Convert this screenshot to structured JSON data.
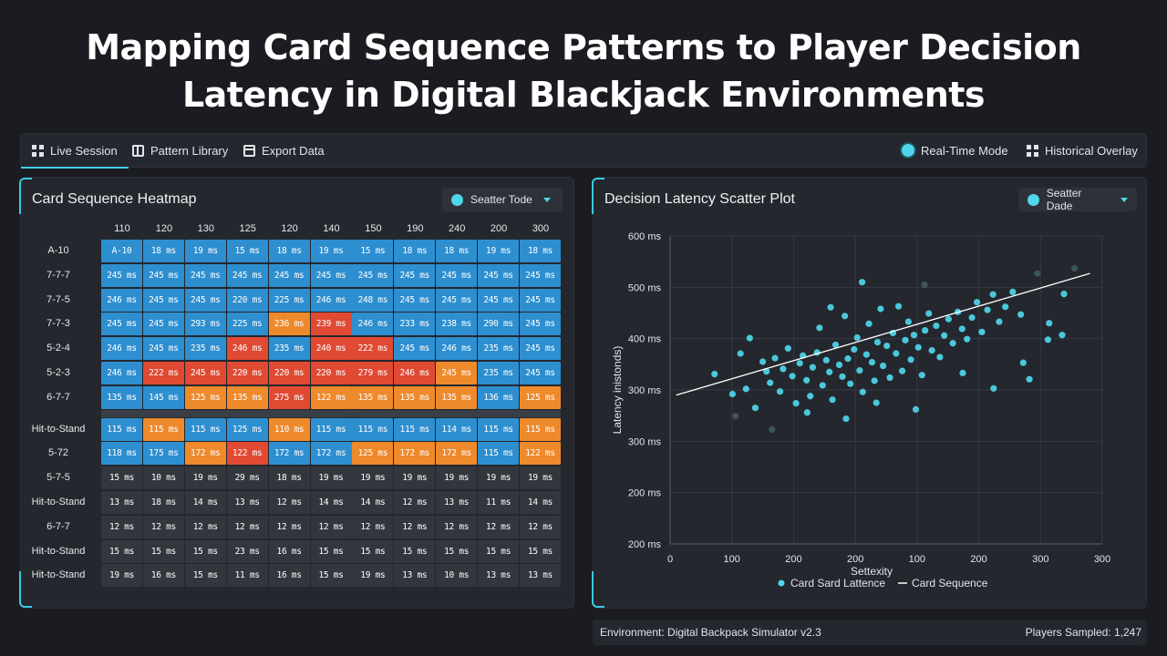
{
  "title_line1": "Mapping Card Sequence Patterns to Player Decision",
  "title_line2": "Latency in Digital Blackjack Environments",
  "toolbar": {
    "live_session": "Live Session",
    "pattern_library": "Pattern Library",
    "export_data": "Export Data",
    "realtime_mode": "Real-Time Mode",
    "historical_overlay": "Historical Overlay"
  },
  "heatmap": {
    "title": "Card Sequence Heatmap",
    "dropdown": "Seatter Tode",
    "columns": [
      "110",
      "120",
      "130",
      "125",
      "120",
      "140",
      "150",
      "190",
      "240",
      "200",
      "300"
    ],
    "rows": [
      {
        "label": "A-10",
        "cells": [
          "A-10",
          "18 ms",
          "19 ms",
          "15 ms",
          "18 ms",
          "19 ms",
          "15 ms",
          "18 ms",
          "18 ms",
          "19 ms",
          "18 ms"
        ],
        "colors": [
          "b",
          "b",
          "b",
          "b",
          "b",
          "b",
          "b",
          "b",
          "b",
          "b",
          "b"
        ]
      },
      {
        "label": "7-7-7",
        "cells": [
          "245 ms",
          "245 ms",
          "245 ms",
          "245 ms",
          "245 ms",
          "245 ms",
          "245 ms",
          "245 ms",
          "245 ms",
          "245 ms",
          "245 ms"
        ],
        "colors": [
          "b",
          "b",
          "b",
          "b",
          "b",
          "b",
          "b",
          "b",
          "b",
          "b",
          "b"
        ]
      },
      {
        "label": "7-7-5",
        "cells": [
          "246 ms",
          "245 ms",
          "245 ms",
          "220 ms",
          "225 ms",
          "246 ms",
          "248 ms",
          "245 ms",
          "245 ms",
          "245 ms",
          "245 ms"
        ],
        "colors": [
          "b",
          "b",
          "b",
          "b",
          "b",
          "b",
          "b",
          "b",
          "b",
          "b",
          "b"
        ]
      },
      {
        "label": "7-7-3",
        "cells": [
          "245 ms",
          "245 ms",
          "293 ms",
          "225 ms",
          "236 ms",
          "239 ms",
          "246 ms",
          "233 ms",
          "238 ms",
          "290 ms",
          "245 ms"
        ],
        "colors": [
          "b",
          "b",
          "b",
          "b",
          "o",
          "r",
          "b",
          "b",
          "b",
          "b",
          "b"
        ]
      },
      {
        "label": "5-2-4",
        "cells": [
          "246 ms",
          "245 ms",
          "235 ms",
          "246 ms",
          "235 ms",
          "240 ms",
          "222 ms",
          "245 ms",
          "246 ms",
          "235 ms",
          "245 ms"
        ],
        "colors": [
          "b",
          "b",
          "b",
          "r",
          "b",
          "r",
          "r",
          "b",
          "b",
          "b",
          "b"
        ]
      },
      {
        "label": "5-2-3",
        "cells": [
          "246 ms",
          "222 ms",
          "245 ms",
          "220 ms",
          "220 ms",
          "220 ms",
          "279 ms",
          "246 ms",
          "245 ms",
          "235 ms",
          "245 ms"
        ],
        "colors": [
          "b",
          "r",
          "r",
          "r",
          "r",
          "r",
          "r",
          "r",
          "o",
          "b",
          "b"
        ]
      },
      {
        "label": "6-7-7",
        "cells": [
          "135 ms",
          "145 ms",
          "125 ms",
          "135 ms",
          "275 ms",
          "122 ms",
          "135 ms",
          "135 ms",
          "135 ms",
          "136 ms",
          "125 ms"
        ],
        "colors": [
          "b",
          "b",
          "o",
          "o",
          "r",
          "o",
          "o",
          "o",
          "o",
          "b",
          "o"
        ]
      },
      {
        "label": "Hit-to-Stand",
        "cells": [
          "115 ms",
          "115 ms",
          "115 ms",
          "125 ms",
          "110 ms",
          "115 ms",
          "115 ms",
          "115 ms",
          "114 ms",
          "115 ms",
          "115 ms"
        ],
        "colors": [
          "b",
          "o",
          "b",
          "b",
          "o",
          "b",
          "b",
          "b",
          "b",
          "b",
          "o"
        ]
      },
      {
        "label": "5-72",
        "cells": [
          "118 ms",
          "175 ms",
          "172 ms",
          "122 ms",
          "172 ms",
          "172 ms",
          "125 ms",
          "172 ms",
          "172 ms",
          "115 ms",
          "122 ms"
        ],
        "colors": [
          "b",
          "b",
          "o",
          "r",
          "b",
          "b",
          "o",
          "o",
          "o",
          "b",
          "o"
        ]
      },
      {
        "label": "5-7-5",
        "cells": [
          "15 ms",
          "10 ms",
          "19 ms",
          "29 ms",
          "18 ms",
          "19 ms",
          "19 ms",
          "19 ms",
          "19 ms",
          "19 ms",
          "19 ms"
        ],
        "colors": [
          "d",
          "d",
          "d",
          "d",
          "d",
          "d",
          "d",
          "d",
          "d",
          "d",
          "d"
        ]
      },
      {
        "label": "Hit-to-Stand",
        "cells": [
          "13 ms",
          "18 ms",
          "14 ms",
          "13 ms",
          "12 ms",
          "14 ms",
          "14 ms",
          "12 ms",
          "13 ms",
          "11 ms",
          "14 ms"
        ],
        "colors": [
          "d",
          "d",
          "d",
          "d",
          "d",
          "d",
          "d",
          "d",
          "d",
          "d",
          "d"
        ]
      },
      {
        "label": "6-7-7",
        "cells": [
          "12 ms",
          "12 ms",
          "12 ms",
          "12 ms",
          "12 ms",
          "12 ms",
          "12 ms",
          "12 ms",
          "12 ms",
          "12 ms",
          "12 ms"
        ],
        "colors": [
          "d",
          "d",
          "d",
          "d",
          "d",
          "d",
          "d",
          "d",
          "d",
          "d",
          "d"
        ]
      },
      {
        "label": "Hit-to-Stand",
        "cells": [
          "15 ms",
          "15 ms",
          "15 ms",
          "23 ms",
          "16 ms",
          "15 ms",
          "15 ms",
          "15 ms",
          "15 ms",
          "15 ms",
          "15 ms"
        ],
        "colors": [
          "d",
          "d",
          "d",
          "d",
          "d",
          "d",
          "d",
          "d",
          "d",
          "d",
          "d"
        ]
      },
      {
        "label": "Hit-to-Stand",
        "cells": [
          "19 ms",
          "16 ms",
          "15 ms",
          "11 ms",
          "16 ms",
          "15 ms",
          "19 ms",
          "13 ms",
          "10 ms",
          "13 ms",
          "13 ms"
        ],
        "colors": [
          "d",
          "d",
          "d",
          "d",
          "d",
          "d",
          "d",
          "d",
          "d",
          "d",
          "d"
        ]
      }
    ],
    "palette": {
      "b": "#2e8fd0",
      "o": "#ef8a2c",
      "r": "#e04a33",
      "d": "#33363d"
    }
  },
  "scatter": {
    "title": "Decision Latency Scatter Plot",
    "dropdown": "Seatter Dade"
  },
  "chart_data": {
    "type": "scatter",
    "title": "Decision Latency Scatter Plot",
    "xlabel": "Settexity",
    "ylabel": "Latency inistonds)",
    "x_tick_labels": [
      "0",
      "100",
      "200",
      "200",
      "100",
      "200",
      "300",
      "300"
    ],
    "y_tick_labels": [
      "600 ms",
      "500 ms",
      "400 ms",
      "300 ms",
      "300 ms",
      "200 ms",
      "200 ms"
    ],
    "xlim": [
      0,
      7
    ],
    "ylim": [
      0,
      6
    ],
    "grid": true,
    "legend": "bottom",
    "series": [
      {
        "name": "Card Sard Lattence",
        "kind": "points",
        "color": "#4fd6ea",
        "points": [
          [
            0.72,
            3.31
          ],
          [
            1.01,
            2.92
          ],
          [
            1.14,
            3.71
          ],
          [
            1.23,
            3.02
          ],
          [
            1.38,
            2.65
          ],
          [
            1.5,
            3.55
          ],
          [
            1.56,
            3.36
          ],
          [
            1.62,
            3.14
          ],
          [
            1.7,
            3.62
          ],
          [
            1.78,
            2.97
          ],
          [
            1.83,
            3.41
          ],
          [
            1.91,
            3.81
          ],
          [
            1.98,
            3.27
          ],
          [
            2.04,
            2.74
          ],
          [
            2.1,
            3.52
          ],
          [
            2.15,
            3.67
          ],
          [
            2.21,
            3.19
          ],
          [
            2.27,
            2.88
          ],
          [
            2.31,
            3.44
          ],
          [
            2.38,
            3.73
          ],
          [
            2.42,
            4.21
          ],
          [
            2.47,
            3.09
          ],
          [
            2.53,
            3.58
          ],
          [
            2.58,
            3.35
          ],
          [
            2.63,
            2.81
          ],
          [
            2.68,
            3.88
          ],
          [
            2.74,
            3.49
          ],
          [
            2.79,
            3.26
          ],
          [
            2.83,
            4.44
          ],
          [
            2.88,
            3.61
          ],
          [
            2.92,
            3.12
          ],
          [
            2.98,
            3.79
          ],
          [
            3.03,
            4.02
          ],
          [
            3.07,
            3.38
          ],
          [
            3.12,
            2.96
          ],
          [
            3.18,
            3.69
          ],
          [
            3.22,
            4.29
          ],
          [
            3.27,
            3.54
          ],
          [
            3.31,
            3.18
          ],
          [
            3.36,
            3.93
          ],
          [
            3.41,
            4.58
          ],
          [
            3.45,
            3.47
          ],
          [
            3.51,
            3.86
          ],
          [
            3.56,
            3.24
          ],
          [
            3.61,
            4.11
          ],
          [
            3.66,
            3.71
          ],
          [
            3.7,
            4.63
          ],
          [
            3.76,
            3.37
          ],
          [
            3.81,
            3.97
          ],
          [
            3.86,
            4.33
          ],
          [
            3.9,
            3.59
          ],
          [
            3.95,
            4.07
          ],
          [
            4.02,
            3.83
          ],
          [
            4.08,
            3.29
          ],
          [
            4.13,
            4.16
          ],
          [
            4.19,
            4.49
          ],
          [
            4.24,
            3.77
          ],
          [
            4.31,
            4.25
          ],
          [
            4.37,
            3.64
          ],
          [
            4.44,
            4.06
          ],
          [
            4.51,
            4.38
          ],
          [
            4.58,
            3.91
          ],
          [
            4.66,
            4.52
          ],
          [
            4.73,
            4.19
          ],
          [
            4.81,
            3.99
          ],
          [
            4.89,
            4.41
          ],
          [
            4.97,
            4.71
          ],
          [
            5.05,
            4.13
          ],
          [
            5.14,
            4.56
          ],
          [
            5.23,
            4.86
          ],
          [
            5.33,
            4.33
          ],
          [
            5.43,
            4.62
          ],
          [
            5.55,
            4.91
          ],
          [
            5.68,
            4.47
          ],
          [
            5.82,
            3.21
          ],
          [
            5.95,
            5.27
          ],
          [
            6.12,
            3.98
          ],
          [
            6.38,
            4.87
          ],
          [
            1.29,
            4.01
          ],
          [
            1.65,
            2.23
          ],
          [
            2.22,
            2.56
          ],
          [
            2.85,
            2.44
          ],
          [
            3.34,
            2.75
          ],
          [
            3.98,
            2.62
          ],
          [
            4.74,
            3.33
          ],
          [
            5.24,
            3.03
          ],
          [
            5.72,
            3.53
          ],
          [
            6.14,
            4.3
          ],
          [
            6.55,
            5.37
          ],
          [
            6.35,
            4.07
          ],
          [
            3.11,
            5.1
          ],
          [
            1.06,
            2.49
          ],
          [
            4.12,
            5.05
          ],
          [
            2.6,
            4.61
          ]
        ]
      },
      {
        "name": "Card Sequence",
        "kind": "trend",
        "color": "#ffffff",
        "points": [
          [
            0.1,
            2.9
          ],
          [
            6.8,
            5.27
          ]
        ]
      }
    ]
  },
  "status": {
    "environment": "Environment: Digital Backpack Simulator v2.3",
    "players": "Players Sampled: 1,247"
  }
}
